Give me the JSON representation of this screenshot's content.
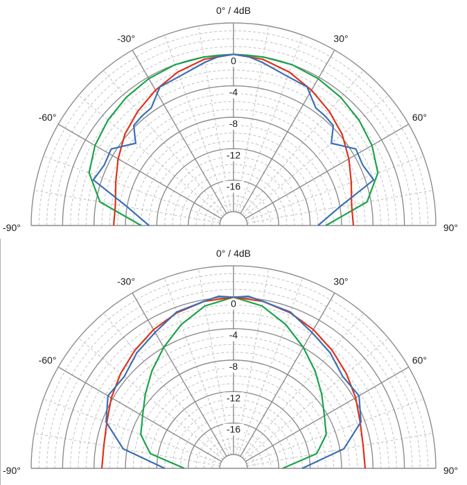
{
  "chart_data": [
    {
      "type": "polar",
      "title": "0° / 4dB",
      "angle_labels": [
        {
          "angle": -90,
          "label": "-90°"
        },
        {
          "angle": -60,
          "label": "-60°"
        },
        {
          "angle": -30,
          "label": "-30°"
        },
        {
          "angle": 30,
          "label": "30°"
        },
        {
          "angle": 60,
          "label": "60°"
        },
        {
          "angle": 90,
          "label": "90°"
        }
      ],
      "radial_ticks": [
        0,
        -4,
        -8,
        -12,
        -16
      ],
      "radial_tick_labels": [
        "0",
        "-4",
        "-8",
        "-12",
        "-16"
      ],
      "rlim": [
        -20,
        4
      ],
      "grid": true,
      "series": [
        {
          "color": "#1aa34a",
          "angles": [
            -90,
            -80,
            -70,
            -60,
            -50,
            -40,
            -30,
            -20,
            -10,
            0,
            10,
            20,
            30,
            40,
            50,
            60,
            70,
            80,
            90
          ],
          "values": [
            -10,
            -4.5,
            -2.2,
            -1.4,
            -0.9,
            -0.5,
            -0.2,
            0,
            0,
            0,
            0,
            0,
            -0.2,
            -0.5,
            -0.9,
            -1.4,
            -2.2,
            -4.5,
            -10
          ]
        },
        {
          "color": "#e0321c",
          "angles": [
            -90,
            -80,
            -70,
            -60,
            -50,
            -40,
            -30,
            -20,
            -10,
            0,
            10,
            20,
            30,
            40,
            50,
            60,
            70,
            80,
            90
          ],
          "values": [
            -6.5,
            -6.5,
            -5.8,
            -4.8,
            -3.7,
            -2.8,
            -1.9,
            -1,
            -0.3,
            0,
            -0.3,
            -1,
            -1.9,
            -2.8,
            -3.7,
            -4.8,
            -5.8,
            -6.5,
            -6.5
          ]
        },
        {
          "color": "#3a6fb5",
          "angles": [
            -90,
            -80,
            -72,
            -65,
            -58,
            -50,
            -45,
            -40,
            -35,
            -28,
            -20,
            -10,
            -5,
            0,
            5,
            10,
            20,
            28,
            35,
            40,
            45,
            50,
            58,
            65,
            72,
            80,
            90
          ],
          "values": [
            -11,
            -8,
            -3,
            -3.6,
            -3.4,
            -5.5,
            -3.8,
            -3.6,
            -3.5,
            -1.8,
            -1.6,
            -0.7,
            -0.2,
            0,
            -0.2,
            -0.7,
            -1.6,
            -1.8,
            -3.5,
            -3.6,
            -3.8,
            -5.5,
            -3.4,
            -3.6,
            -3,
            -8,
            -11
          ]
        }
      ]
    },
    {
      "type": "polar",
      "title": "0° / 4dB",
      "angle_labels": [
        {
          "angle": -90,
          "label": "-90°"
        },
        {
          "angle": -60,
          "label": "-60°"
        },
        {
          "angle": -30,
          "label": "-30°"
        },
        {
          "angle": 30,
          "label": "30°"
        },
        {
          "angle": 60,
          "label": "60°"
        },
        {
          "angle": 90,
          "label": "90°"
        }
      ],
      "radial_ticks": [
        0,
        -4,
        -8,
        -12,
        -16
      ],
      "radial_tick_labels": [
        "0",
        "-4",
        "-8",
        "-12",
        "-16"
      ],
      "rlim": [
        -20,
        4
      ],
      "grid": true,
      "series": [
        {
          "color": "#1aa34a",
          "angles": [
            -90,
            -80,
            -70,
            -60,
            -50,
            -40,
            -30,
            -20,
            -10,
            0,
            10,
            20,
            30,
            40,
            50,
            60,
            70,
            80,
            90
          ],
          "values": [
            -15.5,
            -11,
            -9.2,
            -8.4,
            -7.1,
            -5.6,
            -4,
            -2.3,
            -0.8,
            0,
            -0.8,
            -2.3,
            -4,
            -5.6,
            -7.1,
            -8.4,
            -9.2,
            -11,
            -15.5
          ]
        },
        {
          "color": "#e0321c",
          "angles": [
            -90,
            -80,
            -70,
            -60,
            -50,
            -40,
            -30,
            -20,
            -10,
            0,
            10,
            20,
            30,
            40,
            50,
            60,
            70,
            80,
            90
          ],
          "values": [
            -5,
            -5,
            -4.6,
            -3.8,
            -3,
            -2.2,
            -1.4,
            -0.7,
            -0.2,
            0,
            -0.2,
            -0.7,
            -1.4,
            -2.2,
            -3,
            -3.8,
            -4.6,
            -5,
            -5
          ]
        },
        {
          "color": "#3a6fb5",
          "angles": [
            -90,
            -80,
            -70,
            -60,
            -50,
            -40,
            -30,
            -20,
            -10,
            -5,
            0,
            5,
            10,
            20,
            30,
            40,
            50,
            60,
            70,
            80,
            90
          ],
          "values": [
            -13,
            -7.5,
            -4.5,
            -3.3,
            -3.6,
            -2.6,
            -1.8,
            -0.6,
            -0.2,
            0.2,
            0,
            0.2,
            -0.2,
            -0.6,
            -1.8,
            -2.6,
            -3.6,
            -3.3,
            -4.5,
            -7.5,
            -13
          ]
        }
      ]
    }
  ]
}
